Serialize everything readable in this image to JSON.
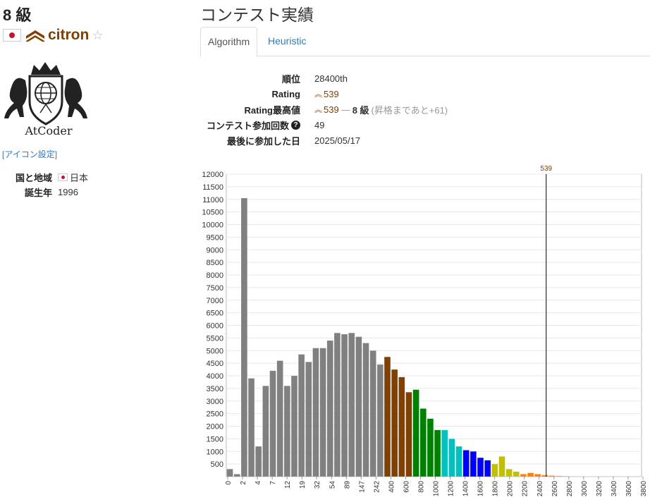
{
  "user": {
    "grade": "8 級",
    "username": "citron",
    "star": "☆",
    "icon_settings": "[アイコン設定]",
    "logo_text": "AtCoder"
  },
  "profile": [
    {
      "label": "国と地域",
      "value": "日本",
      "flag": true
    },
    {
      "label": "誕生年",
      "value": "1996",
      "flag": false
    }
  ],
  "page_title": "コンテスト実績",
  "tabs": [
    {
      "label": "Algorithm",
      "active": true
    },
    {
      "label": "Heuristic",
      "active": false
    }
  ],
  "stats": {
    "rank_label": "順位",
    "rank_value": "28400th",
    "rating_label": "Rating",
    "rating_value": "539",
    "highest_label": "Rating最高値",
    "highest_value": "539",
    "highest_sep": "—",
    "highest_grade": "8 級",
    "highest_note": "(昇格まであと+61)",
    "count_label": "コンテスト参加回数",
    "count_value": "49",
    "last_label": "最後に参加した日",
    "last_value": "2025/05/17"
  },
  "colors": {
    "rating": "#804000",
    "link": "#337ab7"
  },
  "chart_data": {
    "type": "bar",
    "marker_label": "539",
    "x_tick_labels": [
      "0",
      "2",
      "4",
      "7",
      "12",
      "19",
      "32",
      "54",
      "89",
      "147",
      "242",
      "400",
      "600",
      "800",
      "1000",
      "1200",
      "1400",
      "1600",
      "1800",
      "2000",
      "2200",
      "2400",
      "2600",
      "2800",
      "3000",
      "3200",
      "3400",
      "3600",
      "3800"
    ],
    "y_ticks": [
      "500",
      "1000",
      "1500",
      "2000",
      "2500",
      "3000",
      "3500",
      "4000",
      "4500",
      "5000",
      "5500",
      "6000",
      "6500",
      "7000",
      "7500",
      "8000",
      "8500",
      "9000",
      "9500",
      "10000",
      "10500",
      "11000",
      "11500",
      "12000"
    ],
    "ylim": [
      0,
      12000
    ],
    "values": [
      300,
      100,
      11050,
      3900,
      1200,
      3600,
      4200,
      4600,
      3600,
      4000,
      4850,
      4550,
      5100,
      5100,
      5400,
      5700,
      5650,
      5700,
      5550,
      5300,
      5000,
      4450,
      4750,
      4250,
      3950,
      3350,
      3450,
      2700,
      2300,
      1850,
      1850,
      1500,
      1200,
      1050,
      1000,
      750,
      650,
      500,
      800,
      300,
      200,
      100,
      150,
      100,
      60,
      40,
      30,
      20,
      15,
      10,
      8,
      5,
      5,
      3,
      3,
      2,
      2,
      1
    ]
  }
}
